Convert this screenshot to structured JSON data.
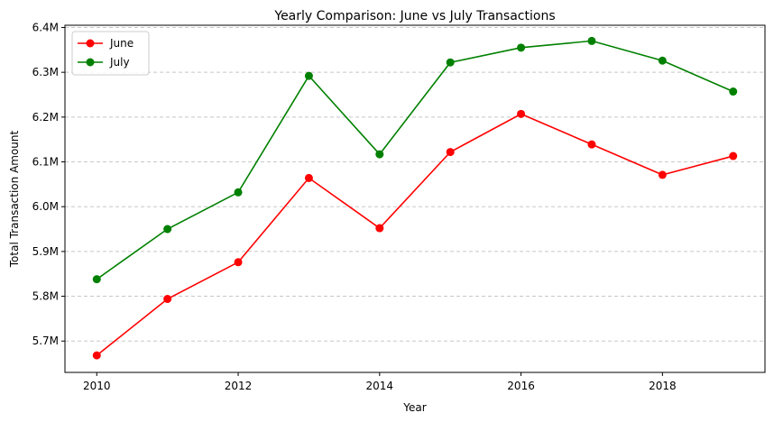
{
  "chart_data": {
    "type": "line",
    "title": "Yearly Comparison: June vs July Transactions",
    "xlabel": "Year",
    "ylabel": "Total Transaction Amount",
    "x": [
      2010,
      2011,
      2012,
      2013,
      2014,
      2015,
      2016,
      2017,
      2018,
      2019
    ],
    "xticks": [
      2010,
      2012,
      2014,
      2016,
      2018
    ],
    "xtick_labels": [
      "2010",
      "2012",
      "2014",
      "2016",
      "2018"
    ],
    "yticks": [
      5700000,
      5800000,
      5900000,
      6000000,
      6100000,
      6200000,
      6300000,
      6400000
    ],
    "ytick_labels": [
      "5.7M",
      "5.8M",
      "5.9M",
      "6.0M",
      "6.1M",
      "6.2M",
      "6.3M",
      "6.4M"
    ],
    "xlim": [
      2009.55,
      2019.45
    ],
    "ylim": [
      5630000,
      6405000
    ],
    "grid": "y-dashed",
    "legend_position": "upper-left",
    "series": [
      {
        "name": "June",
        "color": "#ff0000",
        "marker": "circle",
        "values": [
          5668000,
          5794000,
          5876000,
          6064000,
          5952000,
          6122000,
          6207000,
          6139000,
          6071000,
          6113000
        ]
      },
      {
        "name": "July",
        "color": "#008000",
        "marker": "circle",
        "values": [
          5838000,
          5950000,
          6032000,
          6292000,
          6117000,
          6322000,
          6355000,
          6370000,
          6326000,
          6257000
        ]
      }
    ]
  }
}
